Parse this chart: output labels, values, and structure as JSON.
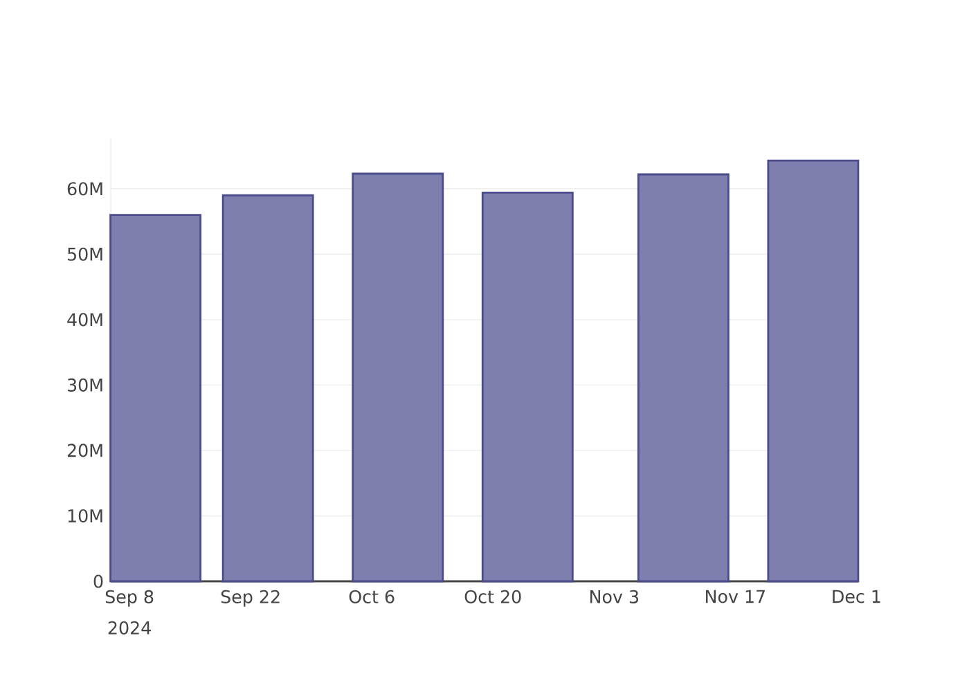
{
  "chart_data": {
    "type": "bar",
    "x": [
      "2024-09-11",
      "2024-09-24",
      "2024-10-09",
      "2024-10-24",
      "2024-11-11",
      "2024-11-26"
    ],
    "values": [
      56.0,
      59.0,
      62.3,
      59.4,
      62.2,
      64.3
    ],
    "color": "#7f7faf",
    "xlim": [
      "2024-09-05T20:00",
      "2024-12-01T05:00"
    ],
    "xticks": [
      {
        "value": "2024-09-08",
        "label": "Sep 8"
      },
      {
        "value": "2024-09-22",
        "label": "Sep 22"
      },
      {
        "value": "2024-10-06",
        "label": "Oct 6"
      },
      {
        "value": "2024-10-20",
        "label": "Oct 20"
      },
      {
        "value": "2024-11-03",
        "label": "Nov 3"
      },
      {
        "value": "2024-11-17",
        "label": "Nov 17"
      },
      {
        "value": "2024-12-01",
        "label": "Dec 1"
      }
    ],
    "ylim": [
      0,
      67.7
    ],
    "yticks": [
      {
        "value": 0,
        "label": "0"
      },
      {
        "value": 10,
        "label": "10M"
      },
      {
        "value": 20,
        "label": "20M"
      },
      {
        "value": 30,
        "label": "30M"
      },
      {
        "value": 40,
        "label": "40M"
      },
      {
        "value": 50,
        "label": "50M"
      },
      {
        "value": 60,
        "label": "60M"
      }
    ],
    "grid": "y",
    "annotations": [
      "2024"
    ]
  }
}
